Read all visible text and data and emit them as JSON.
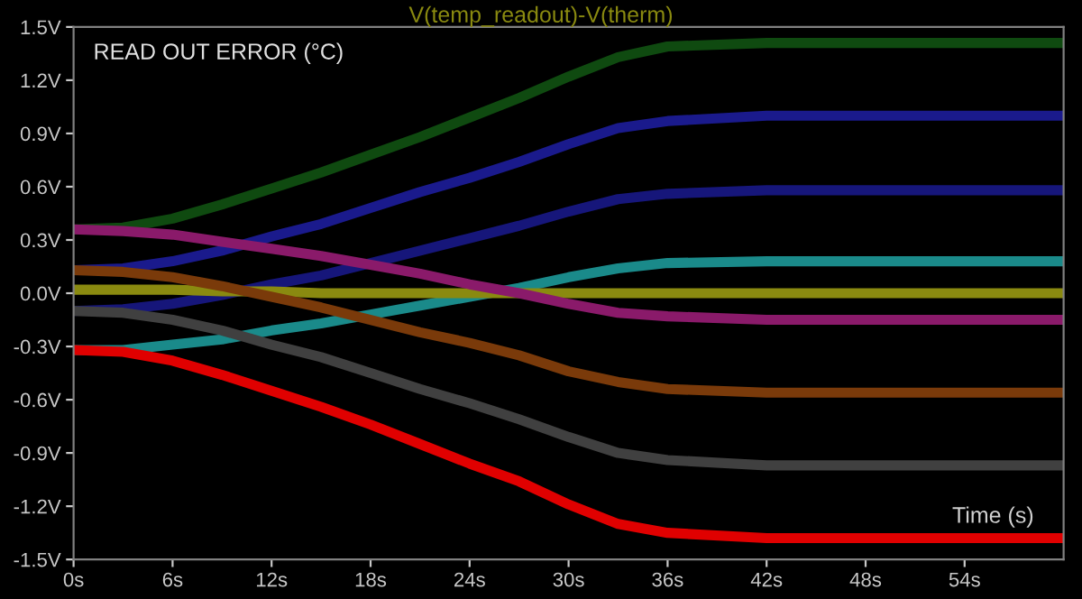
{
  "chart_data": {
    "type": "line",
    "title": "V(temp_readout)-V(therm)",
    "xlabel": "Time (s)",
    "annotations": [
      "READ OUT ERROR (°C)"
    ],
    "x": [
      0,
      3,
      6,
      9,
      12,
      15,
      18,
      21,
      24,
      27,
      30,
      33,
      36,
      42,
      60
    ],
    "series": [
      {
        "color": "#0f4a10",
        "values": [
          0.36,
          0.37,
          0.42,
          0.5,
          0.59,
          0.68,
          0.78,
          0.88,
          0.99,
          1.1,
          1.22,
          1.33,
          1.39,
          1.41,
          1.41
        ]
      },
      {
        "color": "#1a1a8c",
        "values": [
          0.13,
          0.14,
          0.18,
          0.24,
          0.32,
          0.39,
          0.48,
          0.57,
          0.65,
          0.74,
          0.84,
          0.93,
          0.97,
          1.0,
          1.0
        ]
      },
      {
        "color": "#16167a",
        "values": [
          -0.1,
          -0.09,
          -0.06,
          -0.01,
          0.05,
          0.1,
          0.17,
          0.24,
          0.31,
          0.38,
          0.46,
          0.53,
          0.56,
          0.58,
          0.58
        ]
      },
      {
        "color": "#1a8a8a",
        "values": [
          -0.32,
          -0.32,
          -0.29,
          -0.26,
          -0.21,
          -0.17,
          -0.12,
          -0.07,
          -0.02,
          0.03,
          0.09,
          0.14,
          0.17,
          0.18,
          0.18
        ]
      },
      {
        "color": "#8a8a10",
        "values": [
          0.02,
          0.02,
          0.02,
          0.01,
          0.01,
          0.0,
          0.0,
          0.0,
          0.0,
          0.0,
          0.0,
          0.0,
          0.0,
          0.0,
          0.0
        ]
      },
      {
        "color": "#8a1a6a",
        "values": [
          0.36,
          0.35,
          0.33,
          0.29,
          0.25,
          0.21,
          0.16,
          0.11,
          0.05,
          0.0,
          -0.06,
          -0.11,
          -0.13,
          -0.15,
          -0.15
        ]
      },
      {
        "color": "#7a3a0a",
        "values": [
          0.13,
          0.12,
          0.09,
          0.04,
          -0.02,
          -0.08,
          -0.15,
          -0.22,
          -0.28,
          -0.35,
          -0.44,
          -0.5,
          -0.54,
          -0.56,
          -0.56
        ]
      },
      {
        "color": "#404040",
        "values": [
          -0.1,
          -0.11,
          -0.15,
          -0.21,
          -0.29,
          -0.36,
          -0.45,
          -0.54,
          -0.62,
          -0.71,
          -0.81,
          -0.9,
          -0.94,
          -0.97,
          -0.97
        ]
      },
      {
        "color": "#e00000",
        "values": [
          -0.32,
          -0.33,
          -0.38,
          -0.46,
          -0.55,
          -0.64,
          -0.74,
          -0.85,
          -0.96,
          -1.06,
          -1.19,
          -1.3,
          -1.35,
          -1.38,
          -1.38
        ]
      }
    ],
    "xlim": [
      0,
      60
    ],
    "xticks": [
      {
        "value": 0,
        "label": "0s"
      },
      {
        "value": 6,
        "label": "6s"
      },
      {
        "value": 12,
        "label": "12s"
      },
      {
        "value": 18,
        "label": "18s"
      },
      {
        "value": 24,
        "label": "24s"
      },
      {
        "value": 30,
        "label": "30s"
      },
      {
        "value": 36,
        "label": "36s"
      },
      {
        "value": 42,
        "label": "42s"
      },
      {
        "value": 48,
        "label": "48s"
      },
      {
        "value": 54,
        "label": "54s"
      }
    ],
    "ylim": [
      -1.5,
      1.5
    ],
    "yticks": [
      {
        "value": -1.5,
        "label": "-1.5V"
      },
      {
        "value": -1.2,
        "label": "-1.2V"
      },
      {
        "value": -0.9,
        "label": "-0.9V"
      },
      {
        "value": -0.6,
        "label": "-0.6V"
      },
      {
        "value": -0.3,
        "label": "-0.3V"
      },
      {
        "value": 0.0,
        "label": "0.0V"
      },
      {
        "value": 0.3,
        "label": "0.3V"
      },
      {
        "value": 0.6,
        "label": "0.6V"
      },
      {
        "value": 0.9,
        "label": "0.9V"
      },
      {
        "value": 1.2,
        "label": "1.2V"
      },
      {
        "value": 1.5,
        "label": "1.5V"
      }
    ],
    "grid": false,
    "legend": false,
    "marker": "none",
    "line_style": "solid"
  }
}
